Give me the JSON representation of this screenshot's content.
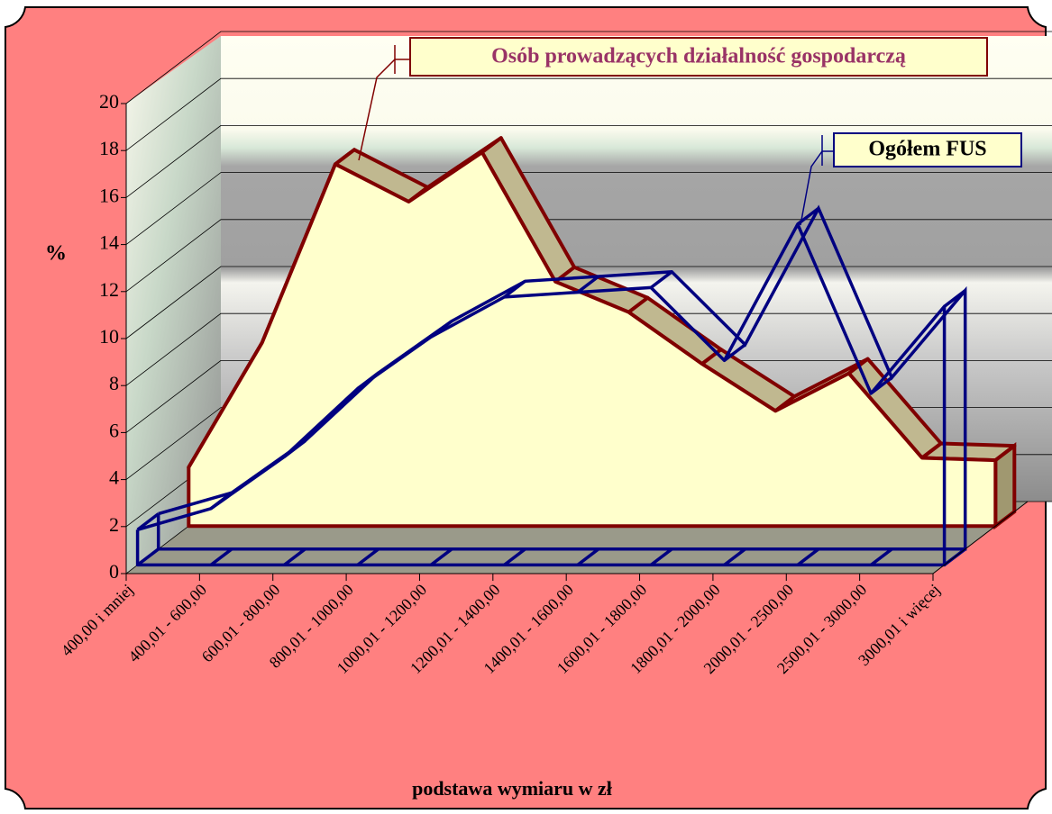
{
  "chart_data": {
    "type": "area3d",
    "x_label": "podstawa wymiaru w zł",
    "y_label": "%",
    "categories": [
      "400,00 i mniej",
      "400,01 - 600,00",
      "600,01 - 800,00",
      "800,01 - 1000,00",
      "1000,01 - 1200,00",
      "1200,01 - 1400,00",
      "1400,01 - 1600,00",
      "1600,01 - 1800,00",
      "1800,01 - 2000,00",
      "2000,01 - 2500,00",
      "2500,01 - 3000,00",
      "3000,01 i więcej"
    ],
    "series": [
      {
        "name": "Osób prowadzących działalność gospodarczą",
        "color": "#800000",
        "fill": "#ffffcc",
        "style": "area",
        "values": [
          2.5,
          7.8,
          15.4,
          13.8,
          15.9,
          10.4,
          9.1,
          6.9,
          4.9,
          6.5,
          2.9,
          2.8
        ]
      },
      {
        "name": "Ogółem FUS",
        "color": "#000080",
        "style": "ribbon",
        "values": [
          1.5,
          2.4,
          4.6,
          7.5,
          9.7,
          11.4,
          11.6,
          11.8,
          8.7,
          14.5,
          7.3,
          11.0
        ]
      }
    ],
    "ylim": [
      0,
      20
    ],
    "yticks": [
      0,
      2,
      4,
      6,
      8,
      10,
      12,
      14,
      16,
      18,
      20
    ],
    "grid": true
  }
}
